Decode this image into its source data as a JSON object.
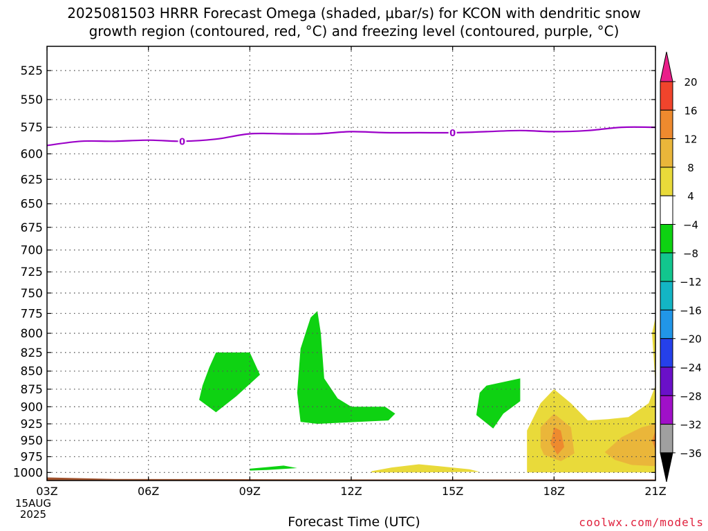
{
  "title": "2025081503 HRRR Forecast Omega (shaded, μbar/s) for KCON with dendritic snow\ngrowth region (contoured, red, °C) and freezing level (contoured, purple, °C)",
  "xlabel": "Forecast Time (UTC)",
  "watermark": "coolwx.com/models",
  "date_label": {
    "day": "15AUG",
    "year": "2025"
  },
  "chart_data": {
    "type": "heatmap",
    "title": "2025081503 HRRR Forecast Omega (shaded, μbar/s) for KCON with dendritic snow growth region (contoured, red, °C) and freezing level (contoured, purple, °C)",
    "xlabel": "Forecast Time (UTC)",
    "ylabel": "",
    "x_range_hours": [
      3,
      21
    ],
    "x_ticks": [
      {
        "hour": 3,
        "label": "03Z"
      },
      {
        "hour": 6,
        "label": "06Z"
      },
      {
        "hour": 9,
        "label": "09Z"
      },
      {
        "hour": 12,
        "label": "12Z"
      },
      {
        "hour": 15,
        "label": "15Z"
      },
      {
        "hour": 18,
        "label": "18Z"
      },
      {
        "hour": 21,
        "label": "21Z"
      }
    ],
    "y_axis": {
      "scale": "log-pressure",
      "inverted": true,
      "range_hPa": [
        1013,
        505
      ]
    },
    "y_ticks": [
      525,
      550,
      575,
      600,
      625,
      650,
      675,
      700,
      725,
      750,
      775,
      800,
      825,
      850,
      875,
      900,
      925,
      950,
      975,
      1000
    ],
    "grid": true,
    "colorbar": {
      "units": "μbar/s",
      "levels": [
        20,
        16,
        12,
        8,
        4,
        -4,
        -8,
        -12,
        -16,
        -20,
        -24,
        -28,
        -32,
        -36
      ],
      "colors": [
        "#ea1f8a",
        "#f0442c",
        "#ee8a2e",
        "#eab63a",
        "#e9da3a",
        "#ffffff",
        "#0ed212",
        "#12c68e",
        "#13b5c4",
        "#2196e8",
        "#2540ea",
        "#6a10c8",
        "#a010c8",
        "#a0a0a0",
        "#000000"
      ]
    },
    "freezing_level": {
      "label": "0",
      "color": "#9b00c8",
      "points": [
        {
          "hour": 3,
          "p": 592
        },
        {
          "hour": 4,
          "p": 588
        },
        {
          "hour": 5,
          "p": 588
        },
        {
          "hour": 6,
          "p": 587
        },
        {
          "hour": 7,
          "p": 588
        },
        {
          "hour": 8,
          "p": 586
        },
        {
          "hour": 9,
          "p": 581
        },
        {
          "hour": 10,
          "p": 581
        },
        {
          "hour": 11,
          "p": 581
        },
        {
          "hour": 12,
          "p": 579
        },
        {
          "hour": 13,
          "p": 580
        },
        {
          "hour": 14,
          "p": 580
        },
        {
          "hour": 15,
          "p": 580
        },
        {
          "hour": 16,
          "p": 579
        },
        {
          "hour": 17,
          "p": 578
        },
        {
          "hour": 18,
          "p": 579
        },
        {
          "hour": 19,
          "p": 578
        },
        {
          "hour": 20,
          "p": 575
        },
        {
          "hour": 21,
          "p": 575
        }
      ],
      "label_hours": [
        7,
        15
      ]
    },
    "regions": [
      {
        "value_range": "-8 to -4",
        "color": "#0ed212",
        "points": [
          [
            8,
            825
          ],
          [
            9,
            825
          ],
          [
            9.3,
            855
          ],
          [
            8.6,
            885
          ],
          [
            8,
            908
          ],
          [
            7.5,
            890
          ],
          [
            7.6,
            870
          ],
          [
            7.8,
            845
          ]
        ]
      },
      {
        "value_range": "-8 to -4",
        "color": "#0ed212",
        "points": [
          [
            11,
            772
          ],
          [
            11.1,
            800
          ],
          [
            11.2,
            860
          ],
          [
            11.6,
            888
          ],
          [
            12,
            900
          ],
          [
            13,
            900
          ],
          [
            13.3,
            910
          ],
          [
            13.1,
            920
          ],
          [
            11,
            925
          ],
          [
            10.5,
            922
          ],
          [
            10.4,
            880
          ],
          [
            10.5,
            820
          ],
          [
            10.8,
            780
          ]
        ]
      },
      {
        "value_range": "-8 to -4",
        "color": "#0ed212",
        "points": [
          [
            16,
            870
          ],
          [
            17,
            860
          ],
          [
            17,
            892
          ],
          [
            16.5,
            910
          ],
          [
            16.2,
            932
          ],
          [
            15.7,
            912
          ],
          [
            15.8,
            880
          ]
        ]
      },
      {
        "value_range": "-8 to -4",
        "color": "#0ed212",
        "points": [
          [
            9,
            994
          ],
          [
            10,
            989
          ],
          [
            10.4,
            993
          ],
          [
            9.5,
            996
          ],
          [
            9,
            997
          ]
        ]
      },
      {
        "value_range": "4 to 8",
        "color": "#e9da3a",
        "points": [
          [
            12.6,
            998
          ],
          [
            13.2,
            992
          ],
          [
            14,
            987
          ],
          [
            14.6,
            990
          ],
          [
            15.5,
            995
          ],
          [
            15.8,
            999
          ],
          [
            14,
            1000
          ],
          [
            12.6,
            1000
          ]
        ]
      },
      {
        "value_range": "4 to 8",
        "color": "#e9da3a",
        "points": [
          [
            17.2,
            965
          ],
          [
            17.2,
            935
          ],
          [
            17.6,
            895
          ],
          [
            18,
            875
          ],
          [
            18.5,
            895
          ],
          [
            19,
            920
          ],
          [
            19.6,
            918
          ],
          [
            20.2,
            915
          ],
          [
            20.8,
            895
          ],
          [
            21,
            870
          ],
          [
            20.9,
            800
          ],
          [
            21,
            780
          ],
          [
            21,
            1000
          ],
          [
            19.5,
            1000
          ],
          [
            17.2,
            1000
          ]
        ]
      },
      {
        "value_range": "8 to 12",
        "color": "#eab63a",
        "points": [
          [
            17.6,
            960
          ],
          [
            17.6,
            930
          ],
          [
            18,
            910
          ],
          [
            18.5,
            930
          ],
          [
            18.6,
            970
          ],
          [
            18.2,
            982
          ],
          [
            17.7,
            972
          ]
        ]
      },
      {
        "value_range": "8 to 12",
        "color": "#eab63a",
        "points": [
          [
            19.5,
            968
          ],
          [
            20,
            945
          ],
          [
            20.6,
            930
          ],
          [
            21,
            925
          ],
          [
            21,
            990
          ],
          [
            20.3,
            988
          ],
          [
            19.8,
            980
          ]
        ]
      },
      {
        "value_range": "12 to 16",
        "color": "#ee8a2e",
        "points": [
          [
            17.9,
            955
          ],
          [
            18,
            930
          ],
          [
            18.2,
            935
          ],
          [
            18.3,
            960
          ],
          [
            18.1,
            972
          ]
        ]
      },
      {
        "value_range": "12 to 16",
        "color": "#ee8a2e",
        "points": [
          [
            20.9,
            950
          ],
          [
            21,
            935
          ],
          [
            21,
            965
          ]
        ]
      }
    ],
    "terrain": {
      "color": "#a0522d",
      "surface_pressure_start": 1008,
      "surface_pressure_end": 1011
    }
  }
}
